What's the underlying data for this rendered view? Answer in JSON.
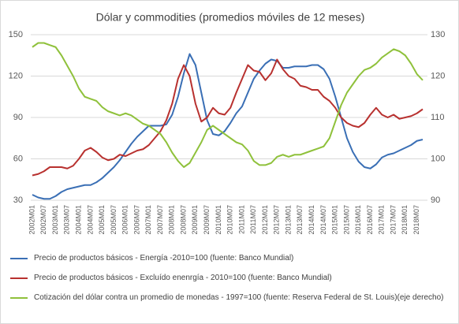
{
  "chart_data": {
    "type": "line",
    "title": "Dólar y commodities (promedios móviles de 12 meses)",
    "categories": [
      "2002M01",
      null,
      "2002M07",
      null,
      "2003M01",
      null,
      "2003M07",
      null,
      "2004M01",
      null,
      "2004M07",
      null,
      "2005M01",
      null,
      "2005M07",
      null,
      "2006M01",
      null,
      "2006M07",
      null,
      "2007M01",
      null,
      "2007M07",
      null,
      "2008M01",
      null,
      "2008M07",
      null,
      "2009M01",
      null,
      "2009M07",
      null,
      "2010M01",
      null,
      "2010M07",
      null,
      "2011M01",
      null,
      "2011M07",
      null,
      "2012M01",
      null,
      "2012M07",
      null,
      "2013M01",
      null,
      "2013M07",
      null,
      "2014M01",
      null,
      "2014M07",
      null,
      "2015M01",
      null,
      "2015M07",
      null,
      "2016M01",
      null,
      "2016M07",
      null,
      "2017M01",
      null,
      "2017M07",
      null,
      "2018M01",
      null,
      "2018M07",
      null
    ],
    "series": [
      {
        "name": "Precio de productos básicos - Energía -2010=100 (fuente: Banco Mundial)",
        "color": "#3a6fb5",
        "axis": "y",
        "values": [
          34,
          32,
          31,
          31,
          33,
          36,
          38,
          39,
          40,
          41,
          41,
          43,
          46,
          50,
          54,
          59,
          65,
          71,
          76,
          80,
          84,
          84,
          84,
          85,
          92,
          105,
          122,
          136,
          128,
          108,
          88,
          78,
          77,
          80,
          86,
          93,
          98,
          108,
          118,
          124,
          129,
          132,
          131,
          126,
          126,
          127,
          127,
          127,
          128,
          128,
          125,
          118,
          105,
          90,
          75,
          65,
          58,
          54,
          53,
          56,
          61,
          63,
          64,
          66,
          68,
          70,
          73,
          74
        ]
      },
      {
        "name": "Precio de productos básicos - Excluído enenrgía - 2010=100 (fuente: Banco Mundial)",
        "color": "#b8312f",
        "axis": "y",
        "values": [
          48,
          49,
          51,
          54,
          54,
          54,
          53,
          55,
          60,
          66,
          68,
          65,
          61,
          59,
          60,
          63,
          62,
          64,
          66,
          67,
          70,
          75,
          80,
          88,
          100,
          118,
          128,
          120,
          100,
          87,
          90,
          97,
          93,
          92,
          97,
          108,
          118,
          128,
          124,
          123,
          117,
          122,
          132,
          125,
          120,
          118,
          113,
          112,
          110,
          110,
          105,
          102,
          97,
          90,
          86,
          84,
          83,
          86,
          92,
          97,
          92,
          90,
          92,
          89,
          90,
          91,
          93,
          96
        ]
      },
      {
        "name": "Cotización del dólar contra un promedio de monedas - 1997=100 (fuente: Reserva Federal de St. Louis)(eje derecho)",
        "color": "#8fc13b",
        "axis": "y2",
        "values": [
          127,
          128,
          128,
          127.5,
          127,
          125,
          122.5,
          120,
          117,
          115,
          114.5,
          114,
          112.5,
          111.5,
          111,
          110.5,
          111,
          110.5,
          109.5,
          108.5,
          108,
          107,
          106,
          104,
          101.5,
          99.5,
          98,
          99,
          101.5,
          104,
          107,
          108,
          107,
          106,
          105,
          104,
          103.5,
          102,
          99.5,
          98.5,
          98.5,
          99,
          100.5,
          101,
          100.5,
          101,
          101,
          101.5,
          102,
          102.5,
          103,
          105,
          109,
          113,
          116,
          118,
          120,
          121.5,
          122,
          123,
          124.5,
          125.5,
          126.5,
          126,
          125,
          123,
          120.5,
          119
        ]
      }
    ],
    "ylim": [
      30,
      150
    ],
    "yticks": [
      30,
      60,
      90,
      120,
      150
    ],
    "y2lim": [
      90,
      130
    ],
    "y2ticks": [
      90,
      100,
      110,
      120,
      130
    ],
    "grid": true,
    "legend": "bottom"
  }
}
